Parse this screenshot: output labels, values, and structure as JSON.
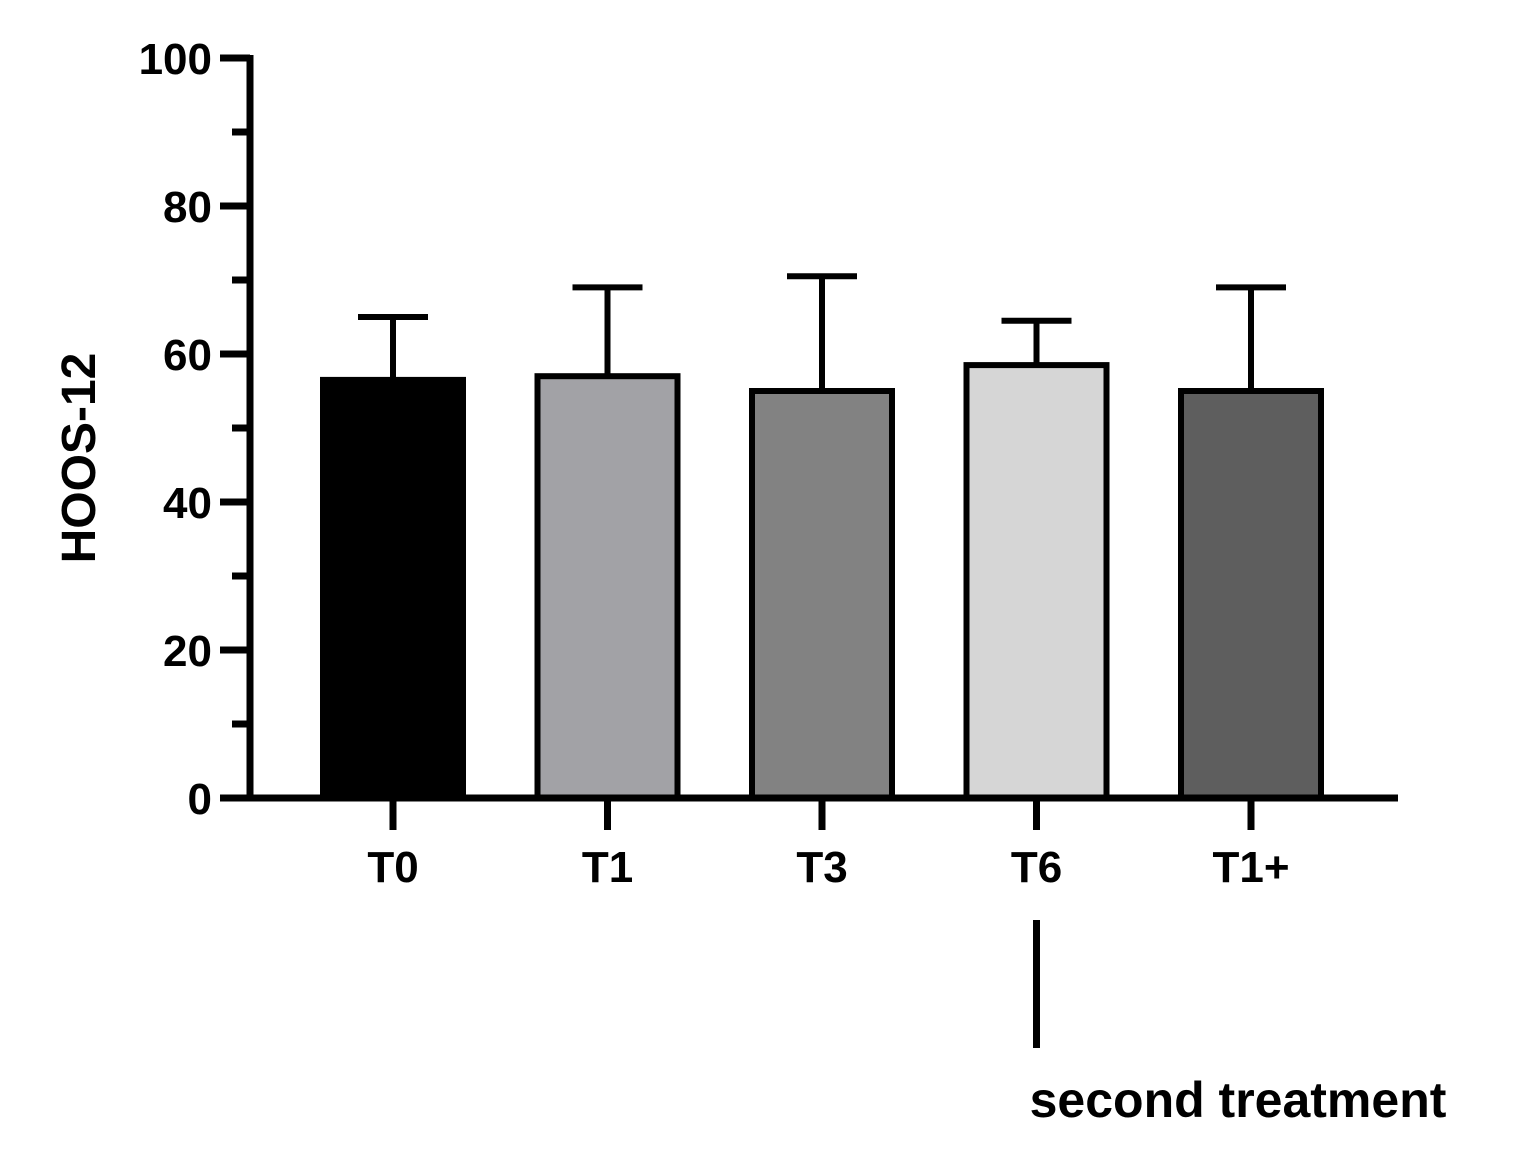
{
  "chart_data": {
    "type": "bar",
    "title": "",
    "xlabel": "",
    "ylabel": "HOOS-12",
    "ylim": [
      0,
      100
    ],
    "yticks": [
      0,
      20,
      40,
      60,
      80,
      100
    ],
    "categories": [
      "T0",
      "T1",
      "T3",
      "T6",
      "T1+"
    ],
    "values": [
      56.5,
      57,
      55,
      58.5,
      55
    ],
    "error_upper": [
      65,
      69,
      70.5,
      64.5,
      69
    ],
    "colors": [
      "#000000",
      "#a2a2a6",
      "#828282",
      "#d6d6d6",
      "#5e5e5e"
    ],
    "grid": false,
    "legend": "none",
    "annotation": {
      "text": "second treatment",
      "category": "T6"
    }
  }
}
